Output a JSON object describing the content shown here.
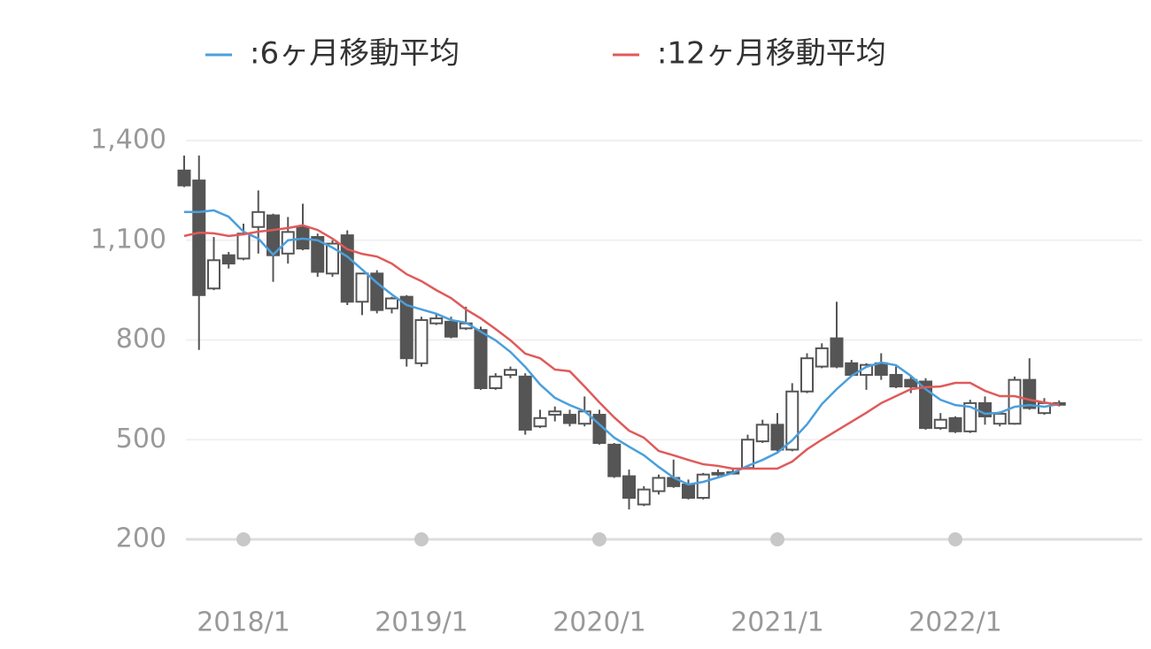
{
  "chart_data": {
    "type": "candlestick",
    "categories": [
      null,
      null,
      null,
      null,
      "2018/1",
      null,
      null,
      null,
      null,
      null,
      null,
      null,
      null,
      null,
      null,
      null,
      "2019/1",
      null,
      null,
      null,
      null,
      null,
      null,
      null,
      null,
      null,
      null,
      null,
      "2020/1",
      null,
      null,
      null,
      null,
      null,
      null,
      null,
      null,
      null,
      null,
      null,
      "2021/1",
      null,
      null,
      null,
      null,
      null,
      null,
      null,
      null,
      null,
      null,
      null,
      "2022/1",
      null,
      null,
      null,
      null,
      null,
      null,
      null
    ],
    "open": [
      1310,
      1280,
      955,
      1055,
      1045,
      1140,
      1175,
      1060,
      1140,
      1110,
      1000,
      1115,
      915,
      1000,
      895,
      930,
      730,
      850,
      855,
      835,
      830,
      655,
      695,
      690,
      540,
      575,
      575,
      548,
      575,
      485,
      390,
      305,
      345,
      385,
      365,
      325,
      395,
      400,
      415,
      495,
      545,
      470,
      645,
      720,
      805,
      730,
      695,
      730,
      695,
      680,
      675,
      535,
      565,
      525,
      610,
      548,
      548,
      680,
      580,
      610
    ],
    "high": [
      1355,
      1355,
      1110,
      1065,
      1150,
      1250,
      1180,
      1170,
      1210,
      1120,
      1100,
      1130,
      1000,
      1010,
      930,
      935,
      870,
      880,
      870,
      900,
      840,
      700,
      720,
      700,
      590,
      600,
      590,
      630,
      590,
      490,
      410,
      360,
      395,
      440,
      380,
      400,
      410,
      415,
      515,
      560,
      580,
      670,
      760,
      790,
      915,
      740,
      730,
      760,
      720,
      690,
      685,
      580,
      570,
      620,
      630,
      585,
      690,
      745,
      625,
      618
    ],
    "low": [
      1260,
      770,
      950,
      1015,
      1040,
      1060,
      975,
      1030,
      1070,
      990,
      990,
      905,
      875,
      880,
      880,
      720,
      720,
      845,
      805,
      830,
      650,
      650,
      685,
      515,
      535,
      555,
      540,
      540,
      485,
      385,
      290,
      300,
      335,
      355,
      320,
      320,
      390,
      395,
      410,
      490,
      465,
      465,
      640,
      715,
      715,
      690,
      650,
      680,
      655,
      640,
      530,
      530,
      520,
      520,
      545,
      540,
      545,
      590,
      575,
      600
    ],
    "close": [
      1265,
      935,
      1040,
      1030,
      1120,
      1185,
      1055,
      1125,
      1075,
      1005,
      1090,
      915,
      1000,
      890,
      925,
      745,
      860,
      865,
      810,
      850,
      655,
      690,
      710,
      530,
      565,
      585,
      550,
      585,
      490,
      390,
      325,
      350,
      385,
      360,
      325,
      395,
      400,
      402,
      500,
      545,
      470,
      645,
      745,
      775,
      720,
      695,
      725,
      695,
      660,
      660,
      535,
      560,
      525,
      610,
      570,
      578,
      680,
      595,
      610,
      605
    ],
    "up_color": "#ffffff",
    "down_color": "#555555",
    "series": [
      {
        "name": ":6ヶ月移動平均",
        "color": "#4a9fdc",
        "values": [
          1185,
          1185,
          1190,
          1171,
          1126,
          1105,
          1057,
          1100,
          1105,
          1100,
          1078,
          1051,
          1012,
          972,
          937,
          905,
          892,
          879,
          860,
          852,
          825,
          799,
          764,
          719,
          666,
          626,
          604,
          586,
          546,
          506,
          479,
          453,
          418,
          386,
          365,
          373,
          386,
          400,
          421,
          439,
          461,
          498,
          546,
          607,
          652,
          692,
          719,
          732,
          724,
          692,
          652,
          620,
          604,
          599,
          578,
          581,
          599,
          604,
          599,
          607
        ]
      },
      {
        "name": ":12ヶ月移動平均",
        "color": "#e05a5a",
        "values": [
          1113,
          1123,
          1121,
          1113,
          1118,
          1126,
          1131,
          1137,
          1145,
          1131,
          1105,
          1073,
          1059,
          1051,
          1030,
          998,
          977,
          950,
          926,
          892,
          865,
          833,
          799,
          759,
          745,
          711,
          706,
          660,
          612,
          567,
          527,
          506,
          466,
          453,
          439,
          426,
          421,
          413,
          413,
          413,
          413,
          434,
          471,
          500,
          527,
          554,
          581,
          610,
          631,
          652,
          658,
          660,
          671,
          671,
          647,
          631,
          631,
          620,
          612,
          604
        ]
      }
    ],
    "ylim": [
      200,
      1400
    ],
    "yticks": [
      200,
      500,
      800,
      {
        "value": 1100,
        "label": "1,100"
      },
      {
        "value": 1400,
        "label": "1,400"
      }
    ],
    "grid": true
  }
}
